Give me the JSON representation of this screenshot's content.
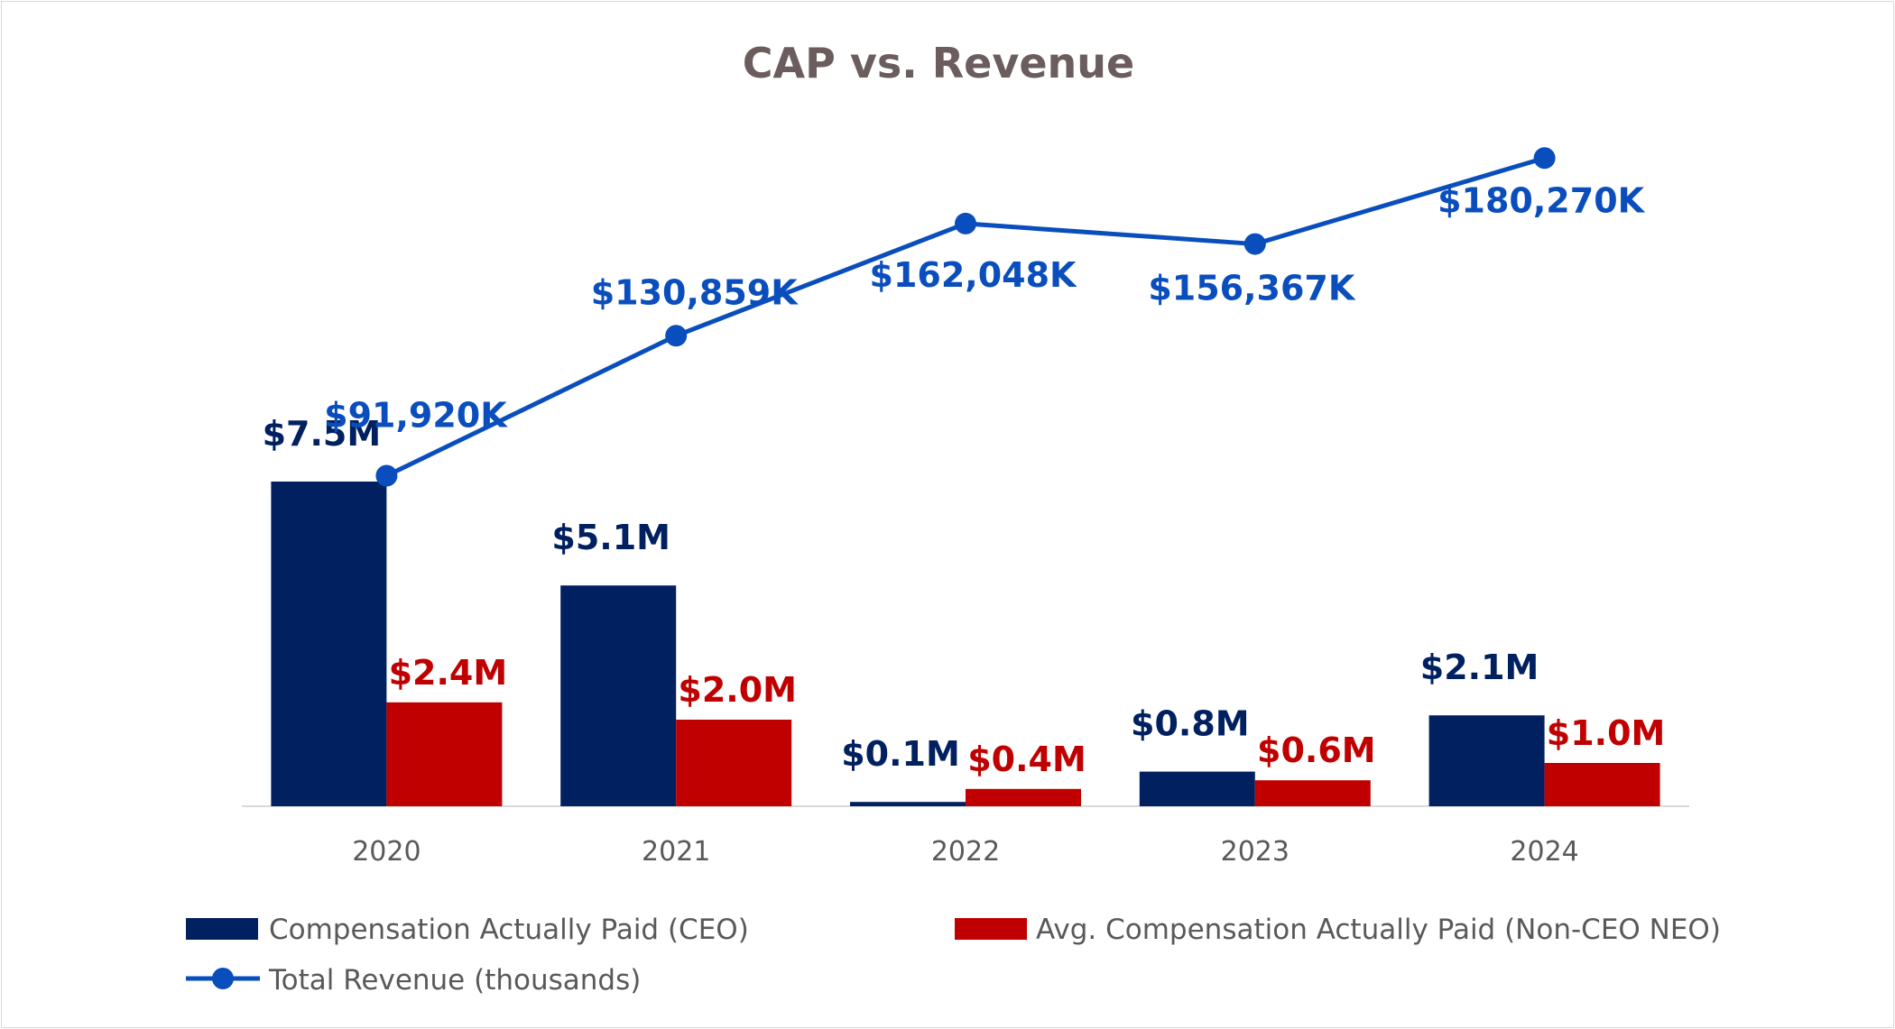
{
  "chart_data": {
    "type": "bar",
    "title": "CAP vs. Revenue",
    "categories": [
      "2020",
      "2021",
      "2022",
      "2023",
      "2024"
    ],
    "series": [
      {
        "name": "Compensation Actually Paid (CEO)",
        "type": "bar",
        "axis": "left",
        "color": "#002060",
        "values": [
          7.5,
          5.1,
          0.1,
          0.8,
          2.1
        ],
        "labels": [
          "$7.5M",
          "$5.1M",
          "$0.1M",
          "$0.8M",
          "$2.1M"
        ]
      },
      {
        "name": "Avg. Compensation Actually Paid (Non-CEO NEO)",
        "type": "bar",
        "axis": "left",
        "color": "#c00000",
        "values": [
          2.4,
          2.0,
          0.4,
          0.6,
          1.0
        ],
        "labels": [
          "$2.4M",
          "$2.0M",
          "$0.4M",
          "$0.6M",
          "$1.0M"
        ]
      },
      {
        "name": "Total Revenue (thousands)",
        "type": "line",
        "axis": "right",
        "color": "#0a4ebd",
        "values": [
          91920,
          130859,
          162048,
          156367,
          180270
        ],
        "labels": [
          "$91,920K",
          "$130,859K",
          "$162,048K",
          "$156,367K",
          "$180,270K"
        ]
      }
    ],
    "legend_position": "bottom",
    "grid": false
  }
}
